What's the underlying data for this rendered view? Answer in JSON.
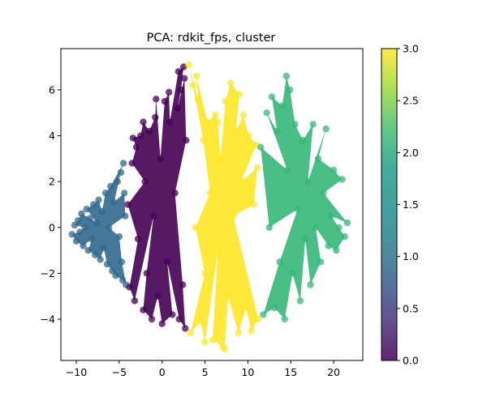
{
  "chart_data": {
    "type": "scatter",
    "title": "PCA: rdkit_fps, cluster",
    "xlabel": "",
    "ylabel": "",
    "xlim": [
      -11.8,
      23.4
    ],
    "ylim": [
      -5.8,
      7.8
    ],
    "xticks": [
      -10,
      -5,
      0,
      5,
      10,
      15,
      20
    ],
    "yticks": [
      -4,
      -2,
      0,
      2,
      4,
      6
    ],
    "grid": false,
    "colormap": "viridis",
    "colorbar": {
      "label": "",
      "range": [
        0.0,
        3.0
      ],
      "ticks": [
        "0.0",
        "0.5",
        "1.0",
        "1.5",
        "2.0",
        "2.5",
        "3.0"
      ]
    },
    "series": [
      {
        "cluster": 1,
        "color": "#31688e",
        "points": [
          [
            -10.5,
            -0.3
          ],
          [
            -10.2,
            0.1
          ],
          [
            -10.0,
            -0.6
          ],
          [
            -9.8,
            0.3
          ],
          [
            -9.6,
            -0.2
          ],
          [
            -9.4,
            0.6
          ],
          [
            -9.2,
            -0.8
          ],
          [
            -9.0,
            0.0
          ],
          [
            -8.8,
            0.8
          ],
          [
            -8.6,
            -1.0
          ],
          [
            -8.4,
            0.4
          ],
          [
            -8.2,
            -0.5
          ],
          [
            -8.0,
            1.0
          ],
          [
            -7.8,
            -1.2
          ],
          [
            -7.6,
            0.2
          ],
          [
            -7.4,
            1.2
          ],
          [
            -7.2,
            -1.4
          ],
          [
            -7.0,
            0.7
          ],
          [
            -6.8,
            -0.9
          ],
          [
            -6.6,
            1.5
          ],
          [
            -6.4,
            -1.6
          ],
          [
            -6.2,
            0.0
          ],
          [
            -6.0,
            1.8
          ],
          [
            -5.8,
            -1.9
          ],
          [
            -5.6,
            1.1
          ],
          [
            -5.4,
            -2.1
          ],
          [
            -5.2,
            2.0
          ],
          [
            -5.0,
            -0.4
          ],
          [
            -4.8,
            2.4
          ],
          [
            -4.6,
            -2.3
          ],
          [
            -4.4,
            1.5
          ],
          [
            -4.2,
            -2.5
          ],
          [
            -4.5,
            2.8
          ],
          [
            -4.3,
            0.5
          ],
          [
            -4.7,
            -1.5
          ]
        ]
      },
      {
        "cluster": 0,
        "color": "#440154",
        "points": [
          [
            -4.0,
            1.0
          ],
          [
            -3.8,
            -2.6
          ],
          [
            -3.5,
            2.8
          ],
          [
            -3.2,
            -3.2
          ],
          [
            -3.0,
            3.5
          ],
          [
            -2.8,
            -0.5
          ],
          [
            -2.5,
            4.0
          ],
          [
            -2.2,
            -3.6
          ],
          [
            -2.0,
            2.0
          ],
          [
            -1.8,
            -2.0
          ],
          [
            -1.5,
            4.2
          ],
          [
            -1.2,
            -4.0
          ],
          [
            -1.0,
            0.5
          ],
          [
            -0.8,
            4.8
          ],
          [
            -0.5,
            -3.0
          ],
          [
            -0.2,
            3.0
          ],
          [
            0.0,
            -4.2
          ],
          [
            0.3,
            5.5
          ],
          [
            0.6,
            -1.5
          ],
          [
            0.9,
            4.6
          ],
          [
            1.2,
            -3.8
          ],
          [
            1.5,
            1.5
          ],
          [
            1.8,
            5.2
          ],
          [
            2.0,
            -4.0
          ],
          [
            2.2,
            6.0
          ],
          [
            2.4,
            -2.5
          ],
          [
            2.6,
            6.5
          ],
          [
            2.7,
            -4.4
          ],
          [
            2.8,
            3.8
          ],
          [
            2.5,
            7.0
          ],
          [
            -0.7,
            5.6
          ],
          [
            0.8,
            5.9
          ],
          [
            1.9,
            6.8
          ],
          [
            -2.2,
            4.6
          ],
          [
            -3.4,
            3.9
          ]
        ]
      },
      {
        "cluster": 3,
        "color": "#fde725",
        "points": [
          [
            3.1,
            7.1
          ],
          [
            3.3,
            -4.6
          ],
          [
            3.6,
            6.2
          ],
          [
            3.9,
            0.0
          ],
          [
            4.2,
            5.6
          ],
          [
            4.5,
            -4.1
          ],
          [
            4.8,
            3.8
          ],
          [
            5.0,
            -2.0
          ],
          [
            5.3,
            4.6
          ],
          [
            5.6,
            1.5
          ],
          [
            5.9,
            -4.9
          ],
          [
            6.2,
            4.9
          ],
          [
            6.5,
            -1.0
          ],
          [
            6.8,
            3.0
          ],
          [
            7.1,
            -5.2
          ],
          [
            7.4,
            5.5
          ],
          [
            7.7,
            -3.0
          ],
          [
            8.0,
            6.3
          ],
          [
            8.3,
            0.5
          ],
          [
            8.6,
            4.2
          ],
          [
            8.9,
            -4.6
          ],
          [
            9.2,
            2.0
          ],
          [
            9.5,
            4.9
          ],
          [
            9.8,
            -3.5
          ],
          [
            10.1,
            4.0
          ],
          [
            10.4,
            -4.5
          ],
          [
            10.7,
            1.0
          ],
          [
            11.0,
            3.6
          ],
          [
            11.2,
            -4.0
          ],
          [
            4.0,
            6.6
          ],
          [
            5.0,
            -5.0
          ],
          [
            7.3,
            -5.3
          ],
          [
            9.0,
            5.8
          ],
          [
            6.5,
            4.6
          ],
          [
            11.1,
            2.6
          ]
        ]
      },
      {
        "cluster": 2,
        "color": "#35b779",
        "points": [
          [
            11.5,
            3.5
          ],
          [
            11.8,
            -3.8
          ],
          [
            12.2,
            5.0
          ],
          [
            12.5,
            0.0
          ],
          [
            12.8,
            5.7
          ],
          [
            13.1,
            -3.5
          ],
          [
            13.4,
            4.2
          ],
          [
            13.7,
            -1.5
          ],
          [
            14.0,
            5.3
          ],
          [
            14.3,
            -4.0
          ],
          [
            14.6,
            2.5
          ],
          [
            14.9,
            6.0
          ],
          [
            15.2,
            -2.0
          ],
          [
            15.5,
            4.5
          ],
          [
            15.8,
            0.8
          ],
          [
            16.1,
            -3.2
          ],
          [
            16.4,
            3.8
          ],
          [
            16.7,
            -0.5
          ],
          [
            17.0,
            2.0
          ],
          [
            17.3,
            -2.5
          ],
          [
            17.6,
            4.5
          ],
          [
            17.9,
            0.0
          ],
          [
            18.2,
            3.0
          ],
          [
            18.5,
            -1.5
          ],
          [
            18.8,
            1.5
          ],
          [
            19.1,
            4.3
          ],
          [
            19.4,
            -0.8
          ],
          [
            19.7,
            0.5
          ],
          [
            20.0,
            2.5
          ],
          [
            20.3,
            -1.0
          ],
          [
            20.6,
            0.0
          ],
          [
            21.0,
            2.1
          ],
          [
            21.3,
            -0.4
          ],
          [
            21.6,
            0.2
          ],
          [
            14.5,
            6.6
          ]
        ]
      }
    ]
  }
}
